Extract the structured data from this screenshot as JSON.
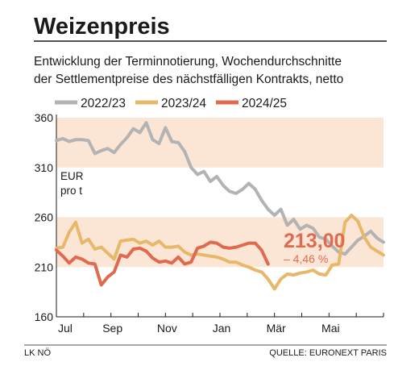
{
  "chart_data": {
    "type": "line",
    "title": "Weizenpreis",
    "subtitle_lines": [
      "Entwicklung der Terminnotierung, Wochendurchschnitte",
      "der Settlementpreise des nächstfälligen Kontrakts, netto"
    ],
    "unit_lines": [
      "EUR",
      "pro t"
    ],
    "x_ticks": [
      "Jul",
      "Sep",
      "Nov",
      "Jan",
      "Mär",
      "Mai"
    ],
    "y_ticks": [
      160,
      210,
      260,
      310,
      360
    ],
    "ylim": [
      160,
      360
    ],
    "x_weeks": 52,
    "shaded_bands": [
      [
        210,
        260
      ],
      [
        310,
        360
      ]
    ],
    "series": [
      {
        "name": "2022/23",
        "color": "#b3b3b3",
        "values": [
          337,
          339,
          336,
          338,
          338,
          337,
          324,
          327,
          329,
          325,
          333,
          340,
          349,
          345,
          355,
          338,
          334,
          350,
          336,
          335,
          326,
          310,
          303,
          306,
          296,
          301,
          292,
          286,
          284,
          288,
          294,
          288,
          277,
          268,
          262,
          268,
          252,
          258,
          248,
          252,
          249,
          240,
          238,
          231,
          225,
          223,
          230,
          237,
          241,
          246,
          239,
          235
        ]
      },
      {
        "name": "2023/24",
        "color": "#e8b86a",
        "values": [
          229,
          230,
          245,
          255,
          234,
          238,
          228,
          230,
          224,
          218,
          236,
          237,
          238,
          234,
          236,
          232,
          236,
          230,
          230,
          231,
          225,
          222,
          223,
          222,
          221,
          220,
          218,
          215,
          215,
          212,
          210,
          207,
          205,
          198,
          188,
          198,
          203,
          202,
          204,
          205,
          207,
          203,
          202,
          212,
          213,
          255,
          262,
          256,
          240,
          230,
          226,
          222
        ]
      },
      {
        "name": "2024/25",
        "color": "#e06a50",
        "values": [
          227,
          221,
          214,
          220,
          218,
          214,
          213,
          192,
          200,
          205,
          222,
          220,
          228,
          229,
          226,
          219,
          215,
          216,
          214,
          220,
          213,
          215,
          229,
          231,
          235,
          234,
          230,
          229,
          230,
          232,
          234,
          234,
          227,
          213
        ]
      }
    ],
    "annotation": {
      "value": "213,00",
      "change": "– 4,46 %"
    },
    "footer_left": "LK NÖ",
    "footer_right": "QUELLE: EURONEXT PARIS"
  }
}
